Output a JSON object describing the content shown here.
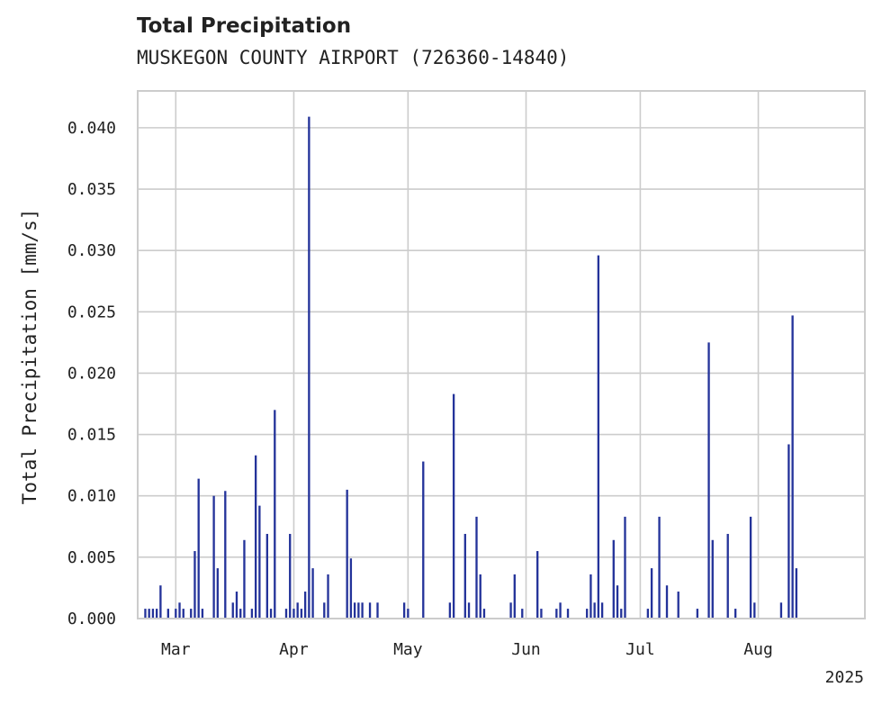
{
  "chart_data": {
    "type": "bar",
    "title": "Total Precipitation",
    "subtitle": "MUSKEGON COUNTY AIRPORT (726360-14840)",
    "xlabel": "",
    "ylabel": "Total Precipitation [mm/s]",
    "ylim": [
      0,
      0.043
    ],
    "yticks": [
      "0.000",
      "0.005",
      "0.010",
      "0.015",
      "0.020",
      "0.025",
      "0.030",
      "0.035",
      "0.040"
    ],
    "xlim": [
      "2025-02-19",
      "2025-08-29"
    ],
    "xticks": [
      {
        "date": "2025-03-01",
        "label": "Mar"
      },
      {
        "date": "2025-04-01",
        "label": "Apr"
      },
      {
        "date": "2025-05-01",
        "label": "May"
      },
      {
        "date": "2025-06-01",
        "label": "Jun"
      },
      {
        "date": "2025-07-01",
        "label": "Jul"
      },
      {
        "date": "2025-08-01",
        "label": "Aug"
      }
    ],
    "year_label": "2025",
    "grid": true,
    "color": "#24339a",
    "x": [
      "2025-02-21",
      "2025-02-22",
      "2025-02-23",
      "2025-02-24",
      "2025-02-25",
      "2025-02-27",
      "2025-03-01",
      "2025-03-02",
      "2025-03-03",
      "2025-03-05",
      "2025-03-06",
      "2025-03-07",
      "2025-03-08",
      "2025-03-11",
      "2025-03-12",
      "2025-03-14",
      "2025-03-16",
      "2025-03-17",
      "2025-03-18",
      "2025-03-19",
      "2025-03-21",
      "2025-03-22",
      "2025-03-23",
      "2025-03-25",
      "2025-03-26",
      "2025-03-27",
      "2025-03-30",
      "2025-03-31",
      "2025-04-01",
      "2025-04-02",
      "2025-04-03",
      "2025-04-04",
      "2025-04-05",
      "2025-04-06",
      "2025-04-09",
      "2025-04-10",
      "2025-04-15",
      "2025-04-16",
      "2025-04-17",
      "2025-04-18",
      "2025-04-19",
      "2025-04-21",
      "2025-04-23",
      "2025-04-30",
      "2025-05-01",
      "2025-05-05",
      "2025-05-12",
      "2025-05-13",
      "2025-05-16",
      "2025-05-17",
      "2025-05-19",
      "2025-05-20",
      "2025-05-21",
      "2025-05-28",
      "2025-05-29",
      "2025-05-31",
      "2025-06-04",
      "2025-06-05",
      "2025-06-09",
      "2025-06-10",
      "2025-06-12",
      "2025-06-17",
      "2025-06-18",
      "2025-06-19",
      "2025-06-20",
      "2025-06-21",
      "2025-06-24",
      "2025-06-25",
      "2025-06-26",
      "2025-06-27",
      "2025-07-03",
      "2025-07-04",
      "2025-07-06",
      "2025-07-08",
      "2025-07-11",
      "2025-07-16",
      "2025-07-19",
      "2025-07-20",
      "2025-07-24",
      "2025-07-26",
      "2025-07-30",
      "2025-07-31",
      "2025-08-07",
      "2025-08-09",
      "2025-08-10",
      "2025-08-11"
    ],
    "values": [
      0.0008,
      0.0008,
      0.0008,
      0.0008,
      0.0027,
      0.0008,
      0.0008,
      0.0013,
      0.0008,
      0.0008,
      0.0055,
      0.0114,
      0.0008,
      0.01,
      0.0041,
      0.0104,
      0.0013,
      0.0022,
      0.0008,
      0.0064,
      0.0008,
      0.0133,
      0.0092,
      0.0069,
      0.0008,
      0.017,
      0.0008,
      0.0069,
      0.0008,
      0.0013,
      0.0008,
      0.0022,
      0.0409,
      0.0041,
      0.0013,
      0.0036,
      0.0105,
      0.0049,
      0.0013,
      0.0013,
      0.0013,
      0.0013,
      0.0013,
      0.0013,
      0.0008,
      0.0128,
      0.0013,
      0.0183,
      0.0069,
      0.0013,
      0.0083,
      0.0036,
      0.0008,
      0.0013,
      0.0036,
      0.0008,
      0.0055,
      0.0008,
      0.0008,
      0.0013,
      0.0008,
      0.0008,
      0.0036,
      0.0013,
      0.0296,
      0.0013,
      0.0064,
      0.0027,
      0.0008,
      0.0083,
      0.0008,
      0.0041,
      0.0083,
      0.0027,
      0.0022,
      0.0008,
      0.0225,
      0.0064,
      0.0069,
      0.0008,
      0.0083,
      0.0013,
      0.0013,
      0.0142,
      0.0247,
      0.0041
    ]
  }
}
